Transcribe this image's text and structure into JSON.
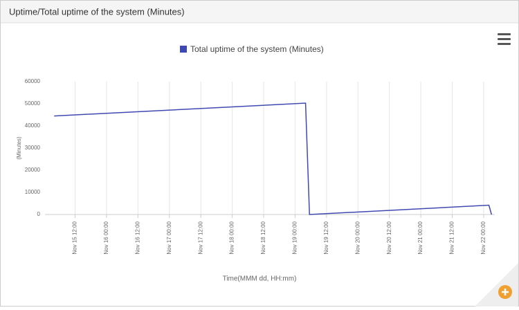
{
  "panel_title": "Uptime/Total uptime of the system (Minutes)",
  "chart_data": {
    "type": "line",
    "x_label": "Time(MMM dd, HH:mm)",
    "y_label": "(Minutes)",
    "x": [
      "Nov 15 04:00",
      "Nov 19 04:00",
      "Nov 19 05:30",
      "Nov 22 02:00",
      "Nov 22 03:00"
    ],
    "series": [
      {
        "name": "Total uptime of the system (Minutes)",
        "color": "#3f48b0",
        "values": [
          44500,
          50300,
          0,
          4200,
          0
        ]
      }
    ],
    "xlim": [
      "Nov 15 00:30",
      "Nov 22 04:15"
    ],
    "xticks": [
      "Nov 15 12:00",
      "Nov 16 00:00",
      "Nov 16 12:00",
      "Nov 17 00:00",
      "Nov 17 12:00",
      "Nov 18 00:00",
      "Nov 18 12:00",
      "Nov 19 00:00",
      "Nov 19 12:00",
      "Nov 20 00:00",
      "Nov 20 12:00",
      "Nov 21 00:00",
      "Nov 21 12:00",
      "Nov 22 00:00"
    ],
    "ylim": [
      0,
      60000
    ],
    "yticks": [
      0,
      10000,
      20000,
      30000,
      40000,
      50000,
      60000
    ],
    "grid": "x",
    "legend": "top"
  }
}
